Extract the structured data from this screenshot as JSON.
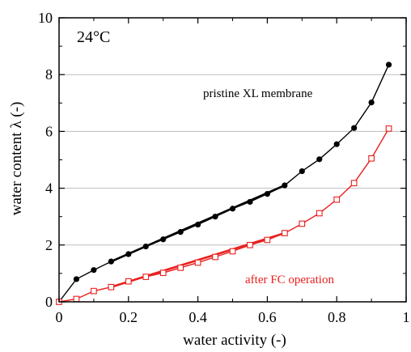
{
  "chart_data": {
    "type": "line",
    "xlabel": "water activity (-)",
    "ylabel": "water content λ (-)",
    "xlim": [
      0,
      1
    ],
    "ylim": [
      0,
      10
    ],
    "xticks": [
      "0",
      "0.2",
      "0.4",
      "0.6",
      "0.8",
      "1"
    ],
    "yticks": [
      "0",
      "2",
      "4",
      "6",
      "8",
      "10"
    ],
    "xtick_values": [
      0,
      0.2,
      0.4,
      0.6,
      0.8,
      1
    ],
    "ytick_values": [
      0,
      2,
      4,
      6,
      8,
      10
    ],
    "grid": "horizontal",
    "annotations": {
      "temperature": "24°C",
      "pristine": "pristine XL membrane",
      "after": "after FC operation"
    },
    "series": [
      {
        "name": "pristine XL membrane",
        "color": "#000000",
        "marker": "filled-circle",
        "x": [
          0,
          0.05,
          0.1,
          0.15,
          0.2,
          0.25,
          0.3,
          0.35,
          0.4,
          0.45,
          0.5,
          0.55,
          0.6,
          0.65,
          0.7,
          0.75,
          0.8,
          0.85,
          0.9,
          0.95
        ],
        "y": [
          0,
          0.8,
          1.12,
          1.42,
          1.68,
          1.95,
          2.2,
          2.46,
          2.72,
          3.0,
          3.28,
          3.52,
          3.8,
          4.1,
          4.6,
          5.02,
          5.55,
          6.12,
          7.02,
          8.35
        ]
      },
      {
        "name": "after FC operation",
        "color": "#e8201e",
        "marker": "open-square",
        "x": [
          0,
          0.05,
          0.1,
          0.15,
          0.2,
          0.25,
          0.3,
          0.35,
          0.4,
          0.45,
          0.5,
          0.55,
          0.6,
          0.65,
          0.7,
          0.75,
          0.8,
          0.85,
          0.9,
          0.95
        ],
        "y": [
          0,
          0.1,
          0.38,
          0.52,
          0.72,
          0.88,
          1.02,
          1.2,
          1.38,
          1.58,
          1.78,
          2.0,
          2.18,
          2.42,
          2.75,
          3.12,
          3.6,
          4.18,
          5.05,
          6.1
        ]
      }
    ]
  }
}
